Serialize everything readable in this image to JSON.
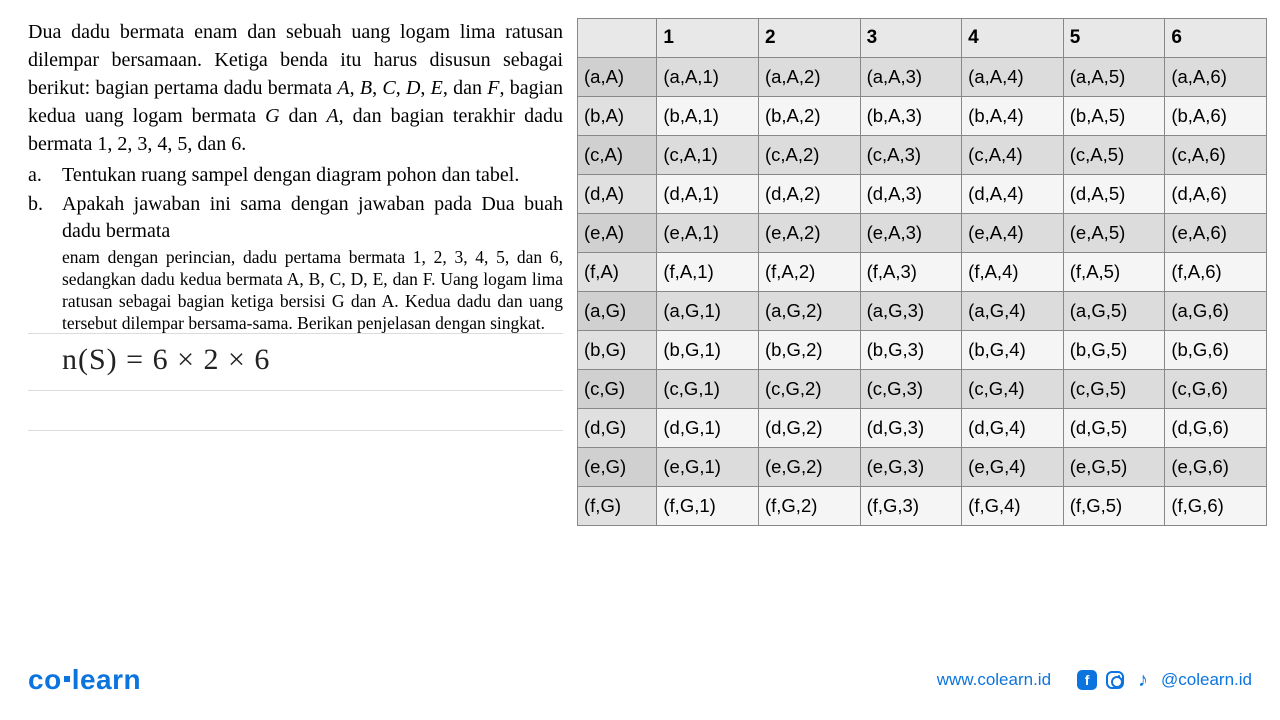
{
  "problem": {
    "intro": "Dua dadu bermata enam dan sebuah uang logam lima ratusan dilempar bersamaan. Ketiga benda itu harus disusun sebagai berikut: bagian pertama dadu bermata A, B, C, D, E, dan F, bagian kedua uang logam bermata G dan A, dan bagian terakhir dadu bermata 1, 2, 3, 4, 5, dan 6.",
    "a_label": "a.",
    "a_text": "Tentukan ruang sampel dengan diagram pohon dan tabel.",
    "b_label": "b.",
    "b_text1": "Apakah jawaban ini sama dengan jawaban pada Dua buah dadu bermata",
    "b_text2": "enam dengan perincian, dadu pertama bermata 1, 2, 3, 4, 5, dan 6, sedangkan dadu kedua bermata A, B, C, D, E, dan F. Uang logam lima ratusan sebagai bagian ketiga bersisi G dan A. Kedua dadu dan uang tersebut dilempar bersama-sama. Berikan penjelasan dengan singkat."
  },
  "handwritten": "n(S) = 6 × 2 × 6",
  "table": {
    "columns": [
      "",
      "1",
      "2",
      "3",
      "4",
      "5",
      "6"
    ],
    "rows": [
      {
        "shade": "dark",
        "cells": [
          "(a,A)",
          "(a,A,1)",
          "(a,A,2)",
          "(a,A,3)",
          "(a,A,4)",
          "(a,A,5)",
          "(a,A,6)"
        ]
      },
      {
        "shade": "light",
        "cells": [
          "(b,A)",
          "(b,A,1)",
          "(b,A,2)",
          "(b,A,3)",
          "(b,A,4)",
          "(b,A,5)",
          "(b,A,6)"
        ]
      },
      {
        "shade": "dark",
        "cells": [
          "(c,A)",
          "(c,A,1)",
          "(c,A,2)",
          "(c,A,3)",
          "(c,A,4)",
          "(c,A,5)",
          "(c,A,6)"
        ]
      },
      {
        "shade": "light",
        "cells": [
          "(d,A)",
          "(d,A,1)",
          "(d,A,2)",
          "(d,A,3)",
          "(d,A,4)",
          "(d,A,5)",
          "(d,A,6)"
        ]
      },
      {
        "shade": "dark",
        "cells": [
          "(e,A)",
          "(e,A,1)",
          "(e,A,2)",
          "(e,A,3)",
          "(e,A,4)",
          "(e,A,5)",
          "(e,A,6)"
        ]
      },
      {
        "shade": "light",
        "cells": [
          "(f,A)",
          "(f,A,1)",
          "(f,A,2)",
          "(f,A,3)",
          "(f,A,4)",
          "(f,A,5)",
          "(f,A,6)"
        ]
      },
      {
        "shade": "dark",
        "cells": [
          "(a,G)",
          "(a,G,1)",
          "(a,G,2)",
          "(a,G,3)",
          "(a,G,4)",
          "(a,G,5)",
          "(a,G,6)"
        ]
      },
      {
        "shade": "light",
        "cells": [
          "(b,G)",
          "(b,G,1)",
          "(b,G,2)",
          "(b,G,3)",
          "(b,G,4)",
          "(b,G,5)",
          "(b,G,6)"
        ]
      },
      {
        "shade": "dark",
        "cells": [
          "(c,G)",
          "(c,G,1)",
          "(c,G,2)",
          "(c,G,3)",
          "(c,G,4)",
          "(c,G,5)",
          "(c,G,6)"
        ]
      },
      {
        "shade": "light",
        "cells": [
          "(d,G)",
          "(d,G,1)",
          "(d,G,2)",
          "(d,G,3)",
          "(d,G,4)",
          "(d,G,5)",
          "(d,G,6)"
        ]
      },
      {
        "shade": "dark",
        "cells": [
          "(e,G)",
          "(e,G,1)",
          "(e,G,2)",
          "(e,G,3)",
          "(e,G,4)",
          "(e,G,5)",
          "(e,G,6)"
        ]
      },
      {
        "shade": "light",
        "cells": [
          "(f,G)",
          "(f,G,1)",
          "(f,G,2)",
          "(f,G,3)",
          "(f,G,4)",
          "(f,G,5)",
          "(f,G,6)"
        ]
      }
    ],
    "header_bg": "#e8e8e8",
    "light_bg": "#f5f5f5",
    "dark_bg": "#dcdcdc",
    "border_color": "#888888",
    "font_size": 18.5
  },
  "footer": {
    "logo_co": "co",
    "logo_learn": "learn",
    "url": "www.colearn.id",
    "handle": "@colearn.id",
    "brand_color": "#0b74de"
  }
}
